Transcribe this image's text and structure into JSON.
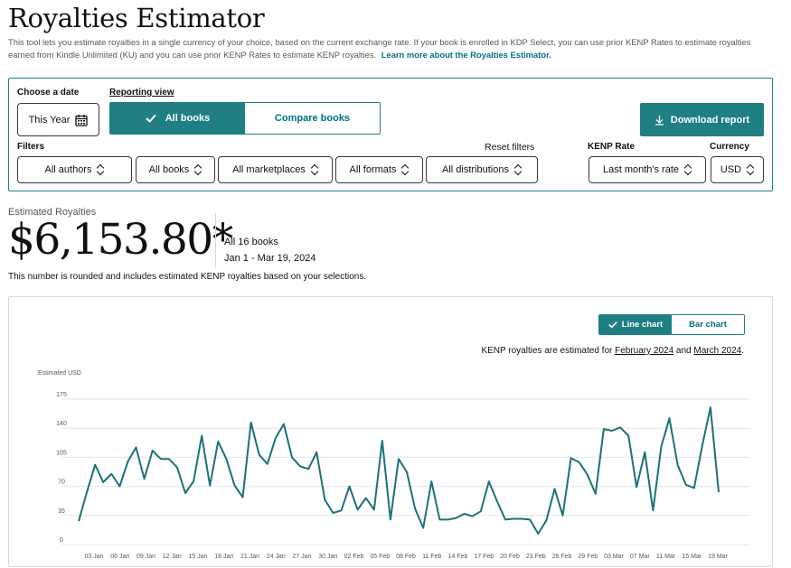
{
  "header": {
    "title": "Royalties Estimator",
    "intro": "This tool lets you estimate royalties in a single currency of your choice, based on the current exchange rate. If your book is enrolled in KDP Select, you can use prior KENP Rates to estimate royalties earned from Kindle Unlimited (KU) and you can use prior KENP Rates to estimate KENP royalties.",
    "learn_more": "Learn more about the Royalties Estimator."
  },
  "controls": {
    "choose_date_label": "Choose a date",
    "date_value": "This Year",
    "reporting_view_label": "Reporting view",
    "view_all": "All books",
    "view_compare": "Compare books",
    "download": "Download report",
    "filters_label": "Filters",
    "reset_filters": "Reset filters",
    "kenp_rate_label": "KENP Rate",
    "currency_label": "Currency",
    "authors": "All authors",
    "books": "All books",
    "marketplaces": "All marketplaces",
    "formats": "All formats",
    "distributions": "All distributions",
    "kenp_rate": "Last month's rate",
    "currency": "USD"
  },
  "summary": {
    "label": "Estimated Royalties",
    "amount": "$6,153.80*",
    "books": "All 16 books",
    "range": "Jan 1 - Mar 19, 2024",
    "note": "This number is rounded and includes estimated KENP royalties based on your selections."
  },
  "chart_panel": {
    "line_label": "Line chart",
    "bar_label": "Bar chart",
    "kenp_prefix": "KENP royalties are estimated for ",
    "kenp_month1": "February 2024",
    "kenp_and": " and ",
    "kenp_month2": "March 2024",
    "kenp_suffix": "."
  },
  "colors": {
    "accent": "#1f7f83",
    "link": "#007185",
    "line": "#1d7178"
  },
  "icons": {
    "calendar": "calendar-icon",
    "check": "check-icon",
    "download": "download-icon",
    "chevron": "up-down-chevron-icon"
  },
  "chart_data": {
    "type": "line",
    "ylabel": "Estimated USD",
    "yticks": [
      0,
      35,
      70,
      105,
      140,
      175
    ],
    "ylim": [
      0,
      175
    ],
    "grid": true,
    "x_tick_labels": [
      "03 Jan",
      "06 Jan",
      "09 Jan",
      "12 Jan",
      "15 Jan",
      "18 Jan",
      "21 Jan",
      "24 Jan",
      "27 Jan",
      "30 Jan",
      "02 Feb",
      "05 Feb",
      "08 Feb",
      "11 Feb",
      "14 Feb",
      "17 Feb",
      "20 Feb",
      "23 Feb",
      "26 Feb",
      "29 Feb",
      "03 Mar",
      "07 Mar",
      "11 Mar",
      "15 Mar",
      "19 Mar"
    ],
    "series": [
      {
        "values": [
          28,
          63,
          96,
          75,
          85,
          70,
          100,
          117,
          79,
          113,
          103,
          103,
          93,
          62,
          76,
          131,
          71,
          124,
          103,
          71,
          57,
          147,
          108,
          97,
          128,
          145,
          105,
          94,
          91,
          111,
          54,
          38,
          41,
          70,
          42,
          56,
          42,
          125,
          30,
          103,
          87,
          43,
          20,
          76,
          30,
          30,
          32,
          37,
          34,
          40,
          76,
          52,
          30,
          31,
          31,
          30,
          13,
          29,
          67,
          35,
          104,
          99,
          84,
          61,
          139,
          137,
          141,
          131,
          69,
          111,
          41,
          118,
          152,
          96,
          72,
          68,
          119,
          165,
          63
        ]
      }
    ]
  }
}
